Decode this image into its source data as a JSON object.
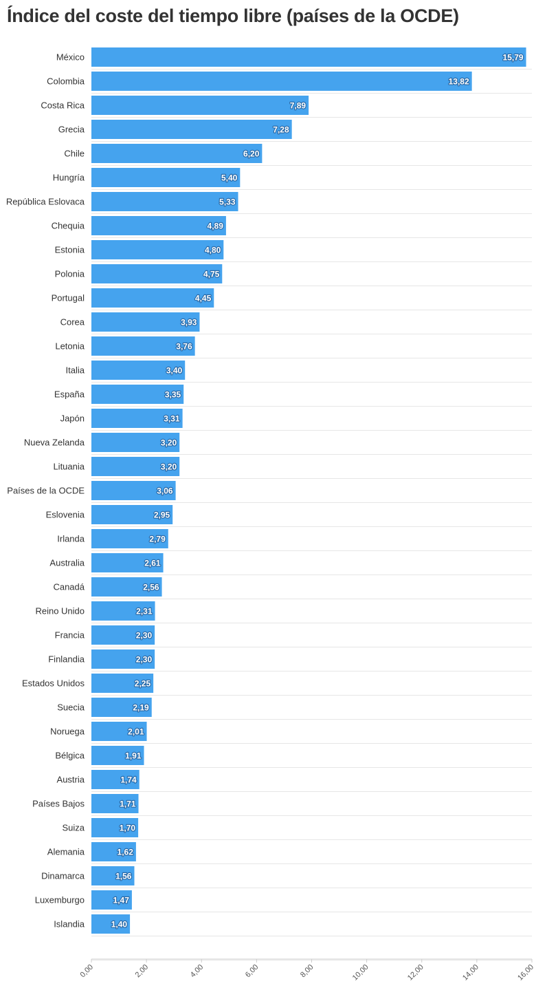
{
  "chart_data": {
    "type": "bar",
    "orientation": "horizontal",
    "title": "Índice del coste del tiempo libre (países de la OCDE)",
    "xlabel": "",
    "ylabel": "",
    "xlim": [
      0,
      16
    ],
    "x_ticks": [
      "0,00",
      "2,00",
      "4,00",
      "6,00",
      "8,00",
      "10,00",
      "12,00",
      "14,00",
      "16,00"
    ],
    "grid": true,
    "bar_color": "#45a3ee",
    "categories": [
      "México",
      "Colombia",
      "Costa Rica",
      "Grecia",
      "Chile",
      "Hungría",
      "República Eslovaca",
      "Chequia",
      "Estonia",
      "Polonia",
      "Portugal",
      "Corea",
      "Letonia",
      "Italia",
      "España",
      "Japón",
      "Nueva Zelanda",
      "Lituania",
      "Países de la OCDE",
      "Eslovenia",
      "Irlanda",
      "Australia",
      "Canadá",
      "Reino Unido",
      "Francia",
      "Finlandia",
      "Estados Unidos",
      "Suecia",
      "Noruega",
      "Bélgica",
      "Austria",
      "Países Bajos",
      "Suiza",
      "Alemania",
      "Dinamarca",
      "Luxemburgo",
      "Islandia"
    ],
    "values": [
      15.79,
      13.82,
      7.89,
      7.28,
      6.2,
      5.4,
      5.33,
      4.89,
      4.8,
      4.75,
      4.45,
      3.93,
      3.76,
      3.4,
      3.35,
      3.31,
      3.2,
      3.2,
      3.06,
      2.95,
      2.79,
      2.61,
      2.56,
      2.31,
      2.3,
      2.3,
      2.25,
      2.19,
      2.01,
      1.91,
      1.74,
      1.71,
      1.7,
      1.62,
      1.56,
      1.47,
      1.4
    ],
    "value_labels": [
      "15,79",
      "13,82",
      "7,89",
      "7,28",
      "6,20",
      "5,40",
      "5,33",
      "4,89",
      "4,80",
      "4,75",
      "4,45",
      "3,93",
      "3,76",
      "3,40",
      "3,35",
      "3,31",
      "3,20",
      "3,20",
      "3,06",
      "2,95",
      "2,79",
      "2,61",
      "2,56",
      "2,31",
      "2,30",
      "2,30",
      "2,25",
      "2,19",
      "2,01",
      "1,91",
      "1,74",
      "1,71",
      "1,70",
      "1,62",
      "1,56",
      "1,47",
      "1,40"
    ]
  }
}
